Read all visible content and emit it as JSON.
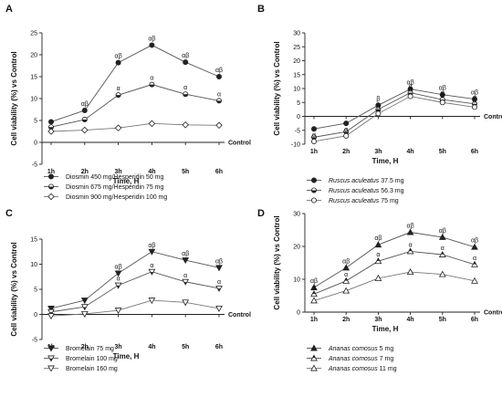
{
  "chart_data": [
    {
      "panel_label": "A",
      "type": "line",
      "ylabel": "Cell viability (%) vs Control",
      "xlabel": "Time, H",
      "control_label": "Control",
      "categories": [
        "1h",
        "2h",
        "3h",
        "4h",
        "5h",
        "6h"
      ],
      "ylim": [
        -5,
        25
      ],
      "yticks": [
        -5,
        0,
        5,
        10,
        15,
        20,
        25
      ],
      "grid": false,
      "legend_position": "bottom",
      "series": [
        {
          "name": "Diosmin 450 mg/Hesperidin 50 mg",
          "values": [
            4.7,
            7.3,
            18.2,
            22.2,
            18.3,
            15.0
          ],
          "marker": "circle-filled",
          "color": "#555555",
          "labels": [
            "",
            "αβ",
            "αβ",
            "αβ",
            "αβ",
            "αβ"
          ]
        },
        {
          "name": "Diosmin 675 mg/Hesperidin 75 mg",
          "values": [
            3.5,
            5.2,
            10.8,
            13.2,
            11.0,
            9.5
          ],
          "marker": "circle-half",
          "color": "#555555",
          "labels": [
            "",
            "",
            "α",
            "α",
            "α",
            "α"
          ]
        },
        {
          "name": "Diosmin 900 mg/Hesperidin 100 mg",
          "values": [
            2.5,
            2.8,
            3.3,
            4.3,
            4.0,
            3.9
          ],
          "marker": "diamond-open",
          "color": "#777777",
          "labels": [
            "",
            "",
            "",
            "",
            "",
            ""
          ]
        }
      ]
    },
    {
      "panel_label": "B",
      "type": "line",
      "ylabel": "Cell viability (%) vs Control",
      "xlabel": "Time, H",
      "control_label": "Control",
      "categories": [
        "1h",
        "2h",
        "3h",
        "4h",
        "5h",
        "6h"
      ],
      "ylim": [
        -10,
        30
      ],
      "yticks": [
        -10,
        -5,
        0,
        5,
        10,
        15,
        20,
        25,
        30
      ],
      "grid": false,
      "legend_position": "bottom",
      "series": [
        {
          "name": "Ruscus aculeatus 37.5 mg",
          "italic_part": "Ruscus aculeatus",
          "values": [
            -4.5,
            -2.5,
            4.0,
            9.8,
            7.8,
            6.2
          ],
          "marker": "circle-filled",
          "color": "#555555",
          "labels": [
            "",
            "",
            "β",
            "αβ",
            "αβ",
            "αβ"
          ]
        },
        {
          "name": "Ruscus aculeatus 56.3 mg",
          "italic_part": "Ruscus aculeatus",
          "values": [
            -7.5,
            -5.5,
            2.5,
            8.5,
            6.0,
            4.5
          ],
          "marker": "circle-half",
          "color": "#555555",
          "labels": [
            "",
            "",
            "",
            "α",
            "α",
            "α"
          ]
        },
        {
          "name": "Ruscus aculeatus 75 mg",
          "italic_part": "Ruscus aculeatus",
          "values": [
            -9.0,
            -7.0,
            1.0,
            7.2,
            5.0,
            3.3
          ],
          "marker": "circle-open",
          "color": "#777777",
          "labels": [
            "α",
            "α",
            "α",
            "α",
            "α",
            "α"
          ]
        }
      ]
    },
    {
      "panel_label": "C",
      "type": "line",
      "ylabel": "Cell viability (%) vs Control",
      "xlabel": "Time, H",
      "control_label": "Control",
      "categories": [
        "1h",
        "2h",
        "3h",
        "4h",
        "5h",
        "6h"
      ],
      "ylim": [
        -5,
        15
      ],
      "yticks": [
        -5,
        0,
        5,
        10,
        15
      ],
      "grid": false,
      "legend_position": "bottom",
      "series": [
        {
          "name": "Bromelain 75 mg",
          "values": [
            1.2,
            2.8,
            8.2,
            12.5,
            10.8,
            9.3
          ],
          "marker": "triangle-down-filled",
          "color": "#555555",
          "labels": [
            "",
            "",
            "αβ",
            "αβ",
            "αβ",
            "αβ"
          ]
        },
        {
          "name": "Bromelain 100 mg",
          "values": [
            0.5,
            1.5,
            5.8,
            8.5,
            6.5,
            5.2
          ],
          "marker": "triangle-down-half",
          "color": "#555555",
          "labels": [
            "",
            "",
            "α",
            "α",
            "α",
            "α"
          ]
        },
        {
          "name": "Bromelain 160 mg",
          "values": [
            -0.3,
            0.1,
            0.8,
            2.8,
            2.4,
            1.2
          ],
          "marker": "triangle-down-open",
          "color": "#777777",
          "labels": [
            "",
            "",
            "",
            "",
            "",
            ""
          ]
        }
      ]
    },
    {
      "panel_label": "D",
      "type": "line",
      "ylabel": "Cell viability (%) vs Control",
      "xlabel": "Time, H",
      "control_label": "Control",
      "categories": [
        "1h",
        "2h",
        "3h",
        "4h",
        "5h",
        "6h"
      ],
      "ylim": [
        0,
        30
      ],
      "yticks": [
        0,
        10,
        20,
        30
      ],
      "grid": false,
      "legend_position": "bottom",
      "series": [
        {
          "name": "Ananas comosus 5 mg",
          "italic_part": "Ananas comosus",
          "values": [
            7.5,
            13.5,
            20.5,
            24.3,
            22.8,
            19.8
          ],
          "marker": "triangle-up-filled",
          "color": "#555555",
          "labels": [
            "αβ",
            "αβ",
            "αβ",
            "αβ",
            "αβ",
            "αβ"
          ]
        },
        {
          "name": "Ananas comosus 7 mg",
          "italic_part": "Ananas comosus",
          "values": [
            5.5,
            9.5,
            15.5,
            18.5,
            17.5,
            14.5
          ],
          "marker": "triangle-up-half",
          "color": "#555555",
          "labels": [
            "α",
            "α",
            "α",
            "α",
            "α",
            "α"
          ]
        },
        {
          "name": "Ananas comosus 11 mg",
          "italic_part": "Ananas comosus",
          "values": [
            3.5,
            6.5,
            10.3,
            12.2,
            11.5,
            9.5
          ],
          "marker": "triangle-up-open",
          "color": "#777777",
          "labels": [
            "",
            "",
            "",
            "",
            "",
            ""
          ]
        }
      ]
    }
  ]
}
